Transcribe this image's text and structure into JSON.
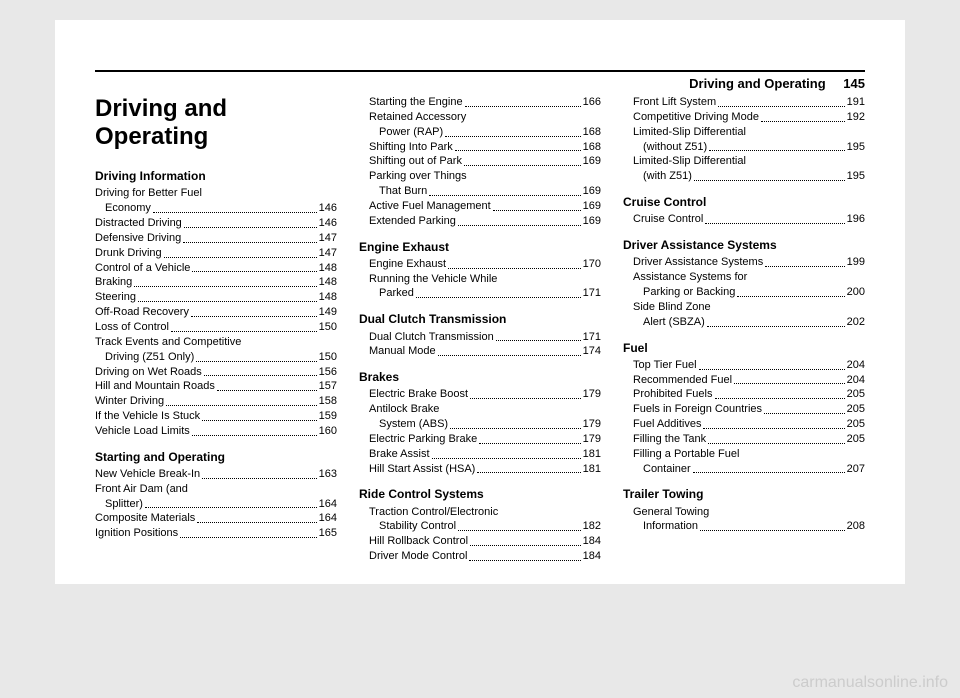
{
  "header": {
    "running_title": "Driving and Operating",
    "page_number": "145"
  },
  "chapter_title": "Driving and Operating",
  "columns": [
    [
      {
        "type": "h1"
      },
      {
        "type": "section",
        "text": "Driving Information",
        "first": true
      },
      {
        "type": "entry_multi",
        "lines": [
          "Driving for Better Fuel",
          "Economy"
        ],
        "page": "146"
      },
      {
        "type": "entry",
        "label": "Distracted Driving",
        "page": "146"
      },
      {
        "type": "entry",
        "label": "Defensive Driving",
        "page": "147"
      },
      {
        "type": "entry",
        "label": "Drunk Driving",
        "page": "147"
      },
      {
        "type": "entry",
        "label": "Control of a Vehicle",
        "page": "148"
      },
      {
        "type": "entry",
        "label": "Braking",
        "page": "148"
      },
      {
        "type": "entry",
        "label": "Steering",
        "page": "148"
      },
      {
        "type": "entry",
        "label": "Off-Road Recovery",
        "page": "149"
      },
      {
        "type": "entry",
        "label": "Loss of Control",
        "page": "150"
      },
      {
        "type": "entry_multi",
        "lines": [
          "Track Events and Competitive",
          "Driving (Z51 Only)"
        ],
        "page": "150"
      },
      {
        "type": "entry",
        "label": "Driving on Wet Roads",
        "page": "156"
      },
      {
        "type": "entry",
        "label": "Hill and Mountain Roads",
        "page": "157"
      },
      {
        "type": "entry",
        "label": "Winter Driving",
        "page": "158"
      },
      {
        "type": "entry",
        "label": "If the Vehicle Is Stuck",
        "page": "159"
      },
      {
        "type": "entry",
        "label": "Vehicle Load Limits",
        "page": "160"
      },
      {
        "type": "section",
        "text": "Starting and Operating"
      },
      {
        "type": "entry",
        "label": "New Vehicle Break-In",
        "page": "163"
      },
      {
        "type": "entry_multi",
        "lines": [
          "Front Air Dam (and",
          "Splitter)"
        ],
        "page": "164"
      },
      {
        "type": "entry",
        "label": "Composite Materials",
        "page": "164"
      },
      {
        "type": "entry",
        "label": "Ignition Positions",
        "page": "165"
      }
    ],
    [
      {
        "type": "entry",
        "label": "Starting the Engine",
        "page": "166",
        "indent": true
      },
      {
        "type": "entry_multi",
        "lines": [
          "Retained Accessory",
          "Power (RAP)"
        ],
        "page": "168",
        "indent": true
      },
      {
        "type": "entry",
        "label": "Shifting Into Park",
        "page": "168",
        "indent": true
      },
      {
        "type": "entry",
        "label": "Shifting out of Park",
        "page": "169",
        "indent": true
      },
      {
        "type": "entry_multi",
        "lines": [
          "Parking over Things",
          "That Burn"
        ],
        "page": "169",
        "indent": true
      },
      {
        "type": "entry",
        "label": "Active Fuel Management",
        "page": "169",
        "indent": true
      },
      {
        "type": "entry",
        "label": "Extended Parking",
        "page": "169",
        "indent": true
      },
      {
        "type": "section",
        "text": "Engine Exhaust"
      },
      {
        "type": "entry",
        "label": "Engine Exhaust",
        "page": "170",
        "indent": true
      },
      {
        "type": "entry_multi",
        "lines": [
          "Running the Vehicle While",
          "Parked"
        ],
        "page": "171",
        "indent": true
      },
      {
        "type": "section",
        "text": "Dual Clutch Transmission"
      },
      {
        "type": "entry",
        "label": "Dual Clutch Transmission",
        "page": "171",
        "indent": true
      },
      {
        "type": "entry",
        "label": "Manual Mode",
        "page": "174",
        "indent": true
      },
      {
        "type": "section",
        "text": "Brakes"
      },
      {
        "type": "entry",
        "label": "Electric Brake Boost",
        "page": "179",
        "indent": true
      },
      {
        "type": "entry_multi",
        "lines": [
          "Antilock Brake",
          "System (ABS)"
        ],
        "page": "179",
        "indent": true
      },
      {
        "type": "entry",
        "label": "Electric Parking Brake",
        "page": "179",
        "indent": true
      },
      {
        "type": "entry",
        "label": "Brake Assist",
        "page": "181",
        "indent": true
      },
      {
        "type": "entry",
        "label": "Hill Start Assist (HSA)",
        "page": "181",
        "indent": true
      },
      {
        "type": "section",
        "text": "Ride Control Systems"
      },
      {
        "type": "entry_multi",
        "lines": [
          "Traction Control/Electronic",
          "Stability Control"
        ],
        "page": "182",
        "indent": true
      },
      {
        "type": "entry",
        "label": "Hill Rollback Control",
        "page": "184",
        "indent": true
      },
      {
        "type": "entry",
        "label": "Driver Mode Control",
        "page": "184",
        "indent": true
      }
    ],
    [
      {
        "type": "entry",
        "label": "Front Lift System",
        "page": "191",
        "indent": true
      },
      {
        "type": "entry",
        "label": "Competitive Driving Mode",
        "page": "192",
        "indent": true
      },
      {
        "type": "entry_multi",
        "lines": [
          "Limited-Slip Differential",
          "(without Z51)"
        ],
        "page": "195",
        "indent": true
      },
      {
        "type": "entry_multi",
        "lines": [
          "Limited-Slip Differential",
          "(with Z51)"
        ],
        "page": "195",
        "indent": true
      },
      {
        "type": "section",
        "text": "Cruise Control"
      },
      {
        "type": "entry",
        "label": "Cruise Control",
        "page": "196",
        "indent": true
      },
      {
        "type": "section",
        "text": "Driver Assistance Systems"
      },
      {
        "type": "entry",
        "label": "Driver Assistance Systems",
        "page": "199",
        "indent": true
      },
      {
        "type": "entry_multi",
        "lines": [
          "Assistance Systems for",
          "Parking or Backing"
        ],
        "page": "200",
        "indent": true
      },
      {
        "type": "entry_multi",
        "lines": [
          "Side Blind Zone",
          "Alert (SBZA)"
        ],
        "page": "202",
        "indent": true
      },
      {
        "type": "section",
        "text": "Fuel"
      },
      {
        "type": "entry",
        "label": "Top Tier Fuel",
        "page": "204",
        "indent": true
      },
      {
        "type": "entry",
        "label": "Recommended Fuel",
        "page": "204",
        "indent": true
      },
      {
        "type": "entry",
        "label": "Prohibited Fuels",
        "page": "205",
        "indent": true
      },
      {
        "type": "entry",
        "label": "Fuels in Foreign Countries",
        "page": "205",
        "indent": true
      },
      {
        "type": "entry",
        "label": "Fuel Additives",
        "page": "205",
        "indent": true
      },
      {
        "type": "entry",
        "label": "Filling the Tank",
        "page": "205",
        "indent": true
      },
      {
        "type": "entry_multi",
        "lines": [
          "Filling a Portable Fuel",
          "Container"
        ],
        "page": "207",
        "indent": true
      },
      {
        "type": "section",
        "text": "Trailer Towing"
      },
      {
        "type": "entry_multi",
        "lines": [
          "General Towing",
          "Information"
        ],
        "page": "208",
        "indent": true
      }
    ]
  ],
  "watermark": "carmanualsonline.info"
}
